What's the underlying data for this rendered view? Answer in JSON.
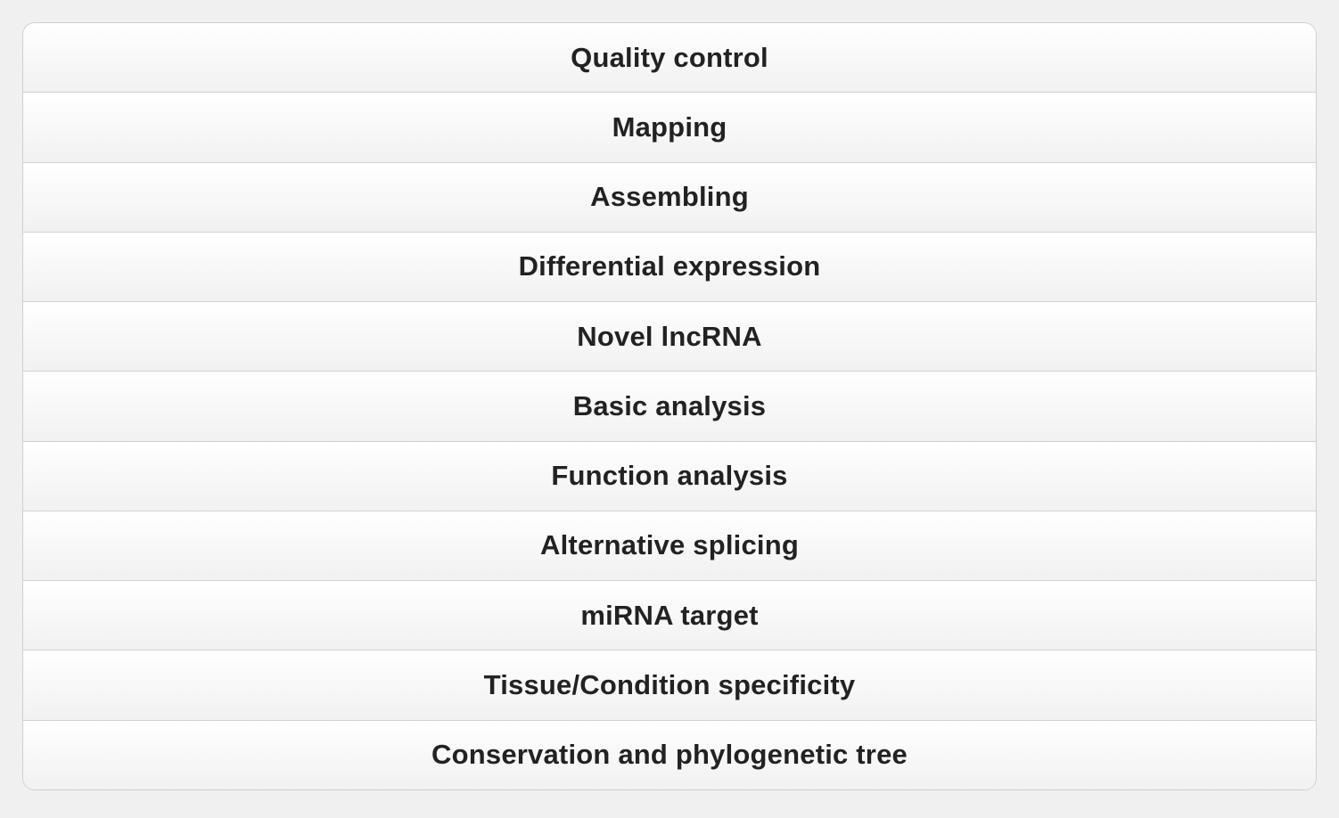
{
  "menu": {
    "items": [
      {
        "label": "Quality control"
      },
      {
        "label": "Mapping"
      },
      {
        "label": "Assembling"
      },
      {
        "label": "Differential expression"
      },
      {
        "label": "Novel lncRNA"
      },
      {
        "label": "Basic analysis"
      },
      {
        "label": "Function analysis"
      },
      {
        "label": "Alternative splicing"
      },
      {
        "label": "miRNA target"
      },
      {
        "label": "Tissue/Condition specificity"
      },
      {
        "label": "Conservation and phylogenetic tree"
      }
    ]
  }
}
